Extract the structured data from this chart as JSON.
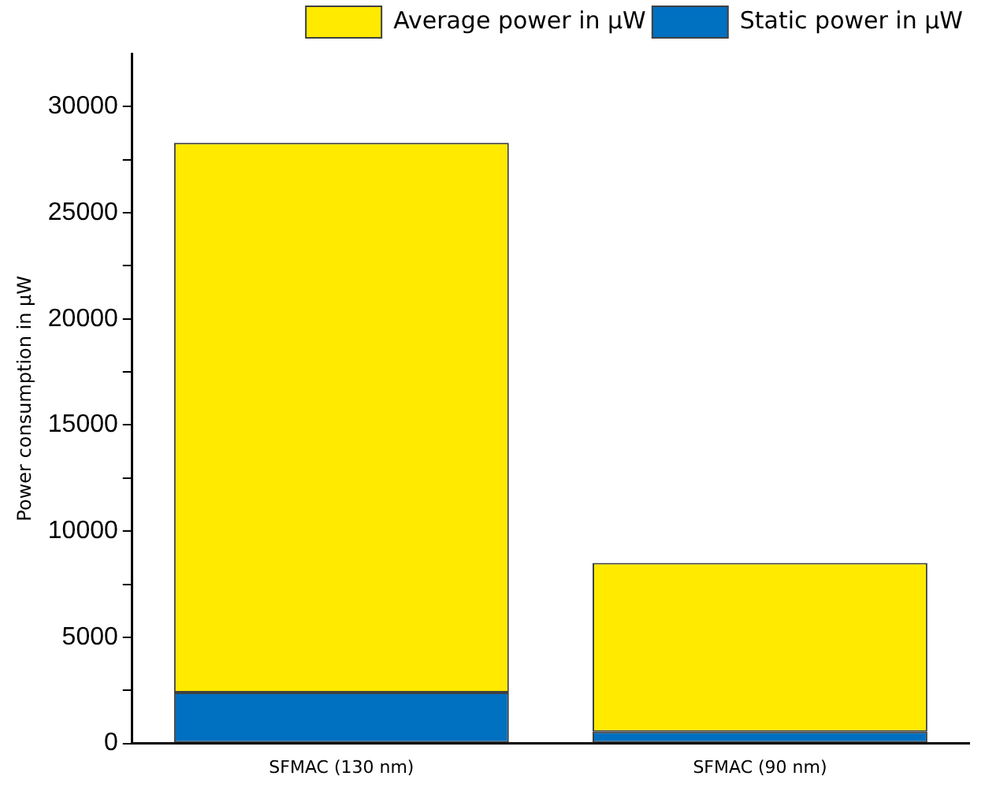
{
  "chart_data": {
    "type": "bar",
    "ylabel": "Power consumption in μW",
    "categories": [
      "SFMAC (130 nm)",
      "SFMAC (90 nm)"
    ],
    "stacked": true,
    "series": [
      {
        "name": "Static power in μW",
        "color": "#0070c0",
        "values": [
          2400,
          550
        ]
      },
      {
        "name": "Average power in μW",
        "color": "#ffea00",
        "values": [
          25900,
          7950
        ]
      }
    ],
    "ylim": [
      0,
      32500
    ],
    "yticks": [
      0,
      {
        "value": 2500,
        "label": null
      },
      5000,
      {
        "value": 7500,
        "label": null
      },
      10000,
      {
        "value": 12500,
        "label": null
      },
      15000,
      {
        "value": 17500,
        "label": null
      },
      20000,
      {
        "value": 22500,
        "label": null
      },
      25000,
      {
        "value": 27500,
        "label": null
      },
      30000
    ],
    "grid": false,
    "legend": "top right"
  }
}
